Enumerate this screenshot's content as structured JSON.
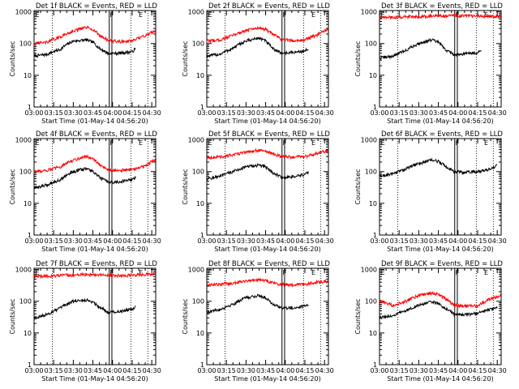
{
  "chart_data": [
    {
      "type": "line",
      "title": "Det 1f BLACK = Events, RED = LLD",
      "xlabel": "Start Time (01-May-14 04:56:20)",
      "ylabel": "Counts/sec",
      "x_ticks": [
        "03:00",
        "03:15",
        "03:30",
        "03:45",
        "04:00",
        "04:15",
        "04:30"
      ],
      "y_ticks": [
        "1",
        "10",
        "100",
        "1000"
      ],
      "yscale": "log",
      "ylim": [
        1,
        1100
      ],
      "xlim_minutes": [
        0,
        93
      ],
      "markers": [
        {
          "label": "E",
          "x": 1
        },
        {
          "label": "F",
          "x": 58
        },
        {
          "label": "E",
          "x": 80
        }
      ],
      "dotted_lines": [
        14,
        74,
        87
      ],
      "solid_lines": [
        57.5,
        59.5
      ],
      "series": [
        {
          "color": "#000000",
          "x": [
            0,
            10,
            20,
            30,
            40,
            45,
            50,
            57,
            65,
            75,
            78
          ],
          "values": [
            40,
            46,
            65,
            120,
            130,
            110,
            70,
            48,
            50,
            55,
            70
          ]
        },
        {
          "color": "#ff0000",
          "x": [
            0,
            10,
            20,
            30,
            40,
            45,
            50,
            57,
            65,
            75,
            85,
            90,
            93
          ],
          "values": [
            100,
            110,
            160,
            250,
            320,
            280,
            180,
            125,
            115,
            120,
            175,
            230,
            260
          ]
        }
      ]
    },
    {
      "type": "line",
      "title": "Det 2f BLACK = Events, RED = LLD",
      "xlabel": "Start Time (01-May-14 04:56:20)",
      "ylabel": "Counts/sec",
      "x_ticks": [
        "03:00",
        "03:15",
        "03:30",
        "03:45",
        "04:00",
        "04:15",
        "04:30"
      ],
      "y_ticks": [
        "1",
        "10",
        "100",
        "1000"
      ],
      "yscale": "log",
      "ylim": [
        1,
        1100
      ],
      "xlim_minutes": [
        0,
        93
      ],
      "markers": [
        {
          "label": "E",
          "x": 1
        },
        {
          "label": "F",
          "x": 58
        },
        {
          "label": "E",
          "x": 80
        }
      ],
      "dotted_lines": [
        14,
        74,
        87
      ],
      "solid_lines": [
        57.5,
        59.5
      ],
      "series": [
        {
          "color": "#000000",
          "x": [
            0,
            10,
            20,
            30,
            40,
            45,
            50,
            57,
            65,
            75,
            78
          ],
          "values": [
            40,
            46,
            70,
            120,
            150,
            120,
            70,
            50,
            52,
            58,
            72
          ]
        },
        {
          "color": "#ff0000",
          "x": [
            0,
            10,
            20,
            30,
            40,
            45,
            50,
            57,
            65,
            75,
            85,
            90,
            93
          ],
          "values": [
            120,
            130,
            180,
            260,
            320,
            280,
            200,
            135,
            125,
            130,
            190,
            250,
            270
          ]
        }
      ]
    },
    {
      "type": "line",
      "title": "Det 3f BLACK = Events, RED = LLD",
      "xlabel": "Start Time (01-May-14 04:56:20)",
      "ylabel": "Counts/sec",
      "x_ticks": [
        "03:00",
        "03:15",
        "03:30",
        "03:45",
        "04:00",
        "04:15",
        "04:30"
      ],
      "y_ticks": [
        "1",
        "10",
        "100",
        "1000"
      ],
      "yscale": "log",
      "ylim": [
        1,
        1100
      ],
      "xlim_minutes": [
        0,
        93
      ],
      "markers": [
        {
          "label": "E",
          "x": 1
        },
        {
          "label": "F",
          "x": 58
        },
        {
          "label": "E",
          "x": 80
        }
      ],
      "dotted_lines": [
        14,
        74,
        87
      ],
      "solid_lines": [
        57.5,
        59.5
      ],
      "series": [
        {
          "color": "#000000",
          "x": [
            0,
            10,
            20,
            30,
            40,
            45,
            50,
            57,
            65,
            75,
            78
          ],
          "values": [
            35,
            40,
            60,
            100,
            130,
            110,
            65,
            45,
            48,
            52,
            60
          ]
        },
        {
          "color": "#ff0000",
          "x": [
            0,
            10,
            20,
            30,
            40,
            50,
            57,
            65,
            75,
            85,
            93
          ],
          "values": [
            650,
            680,
            700,
            720,
            740,
            740,
            760,
            750,
            730,
            720,
            700
          ]
        }
      ]
    },
    {
      "type": "line",
      "title": "Det 4f BLACK = Events, RED = LLD",
      "xlabel": "Start Time (01-May-14 04:56:20)",
      "ylabel": "Counts/sec",
      "x_ticks": [
        "03:00",
        "03:15",
        "03:30",
        "03:45",
        "04:00",
        "04:15",
        "04:30"
      ],
      "y_ticks": [
        "1",
        "10",
        "100",
        "1000"
      ],
      "yscale": "log",
      "ylim": [
        1,
        1100
      ],
      "xlim_minutes": [
        0,
        93
      ],
      "markers": [
        {
          "label": "E",
          "x": 1
        },
        {
          "label": "F",
          "x": 58
        },
        {
          "label": "E",
          "x": 80
        }
      ],
      "dotted_lines": [
        14,
        74,
        87
      ],
      "solid_lines": [
        57.5,
        59.5
      ],
      "series": [
        {
          "color": "#000000",
          "x": [
            0,
            10,
            20,
            30,
            40,
            45,
            50,
            57,
            65,
            75,
            78
          ],
          "values": [
            30,
            38,
            55,
            100,
            125,
            100,
            65,
            45,
            48,
            55,
            70
          ]
        },
        {
          "color": "#ff0000",
          "x": [
            0,
            10,
            20,
            30,
            40,
            45,
            50,
            57,
            65,
            75,
            85,
            90,
            93
          ],
          "values": [
            100,
            110,
            140,
            230,
            300,
            250,
            160,
            115,
            110,
            115,
            150,
            210,
            230
          ]
        }
      ]
    },
    {
      "type": "line",
      "title": "Det 5f BLACK = Events, RED = LLD",
      "xlabel": "Start Time (01-May-14 04:56:20)",
      "ylabel": "Counts/sec",
      "x_ticks": [
        "03:00",
        "03:15",
        "03:30",
        "03:45",
        "04:00",
        "04:15",
        "04:30"
      ],
      "y_ticks": [
        "1",
        "10",
        "100",
        "1000"
      ],
      "yscale": "log",
      "ylim": [
        1,
        1100
      ],
      "xlim_minutes": [
        0,
        93
      ],
      "markers": [
        {
          "label": "E",
          "x": 1
        },
        {
          "label": "F",
          "x": 58
        },
        {
          "label": "E",
          "x": 80
        }
      ],
      "dotted_lines": [
        14,
        74,
        87
      ],
      "solid_lines": [
        57.5,
        59.5
      ],
      "series": [
        {
          "color": "#000000",
          "x": [
            0,
            10,
            20,
            30,
            40,
            45,
            50,
            57,
            65,
            75,
            78
          ],
          "values": [
            60,
            70,
            100,
            140,
            160,
            140,
            95,
            65,
            68,
            80,
            100
          ]
        },
        {
          "color": "#ff0000",
          "x": [
            0,
            10,
            20,
            30,
            40,
            45,
            50,
            57,
            65,
            75,
            85,
            93
          ],
          "values": [
            280,
            290,
            330,
            420,
            470,
            440,
            360,
            300,
            290,
            300,
            380,
            460
          ]
        }
      ]
    },
    {
      "type": "line",
      "title": "Det 6f BLACK = Events, RED = LLD",
      "xlabel": "Start Time (01-May-14 04:56:20)",
      "ylabel": "Counts/sec",
      "x_ticks": [
        "03:00",
        "03:15",
        "03:30",
        "03:45",
        "04:00",
        "04:15",
        "04:30"
      ],
      "y_ticks": [
        "1",
        "10",
        "100",
        "1000"
      ],
      "yscale": "log",
      "ylim": [
        1,
        1100
      ],
      "xlim_minutes": [
        0,
        93
      ],
      "markers": [
        {
          "label": "E",
          "x": 1
        },
        {
          "label": "F",
          "x": 58
        },
        {
          "label": "E",
          "x": 80
        }
      ],
      "dotted_lines": [
        14,
        74,
        87
      ],
      "solid_lines": [
        57.5,
        59.5
      ],
      "series": [
        {
          "color": "#000000",
          "x": [
            0,
            10,
            20,
            30,
            40,
            45,
            50,
            57,
            65,
            75,
            85,
            90
          ],
          "values": [
            70,
            85,
            120,
            180,
            230,
            210,
            150,
            100,
            95,
            100,
            120,
            160
          ]
        }
      ]
    },
    {
      "type": "line",
      "title": "Det 7f BLACK = Events, RED = LLD",
      "xlabel": "Start Time (01-May-14 04:56:20)",
      "ylabel": "Counts/sec",
      "x_ticks": [
        "03:00",
        "03:15",
        "03:30",
        "03:45",
        "04:00",
        "04:15",
        "04:30"
      ],
      "y_ticks": [
        "1",
        "10",
        "100",
        "1000"
      ],
      "yscale": "log",
      "ylim": [
        1,
        1100
      ],
      "xlim_minutes": [
        0,
        93
      ],
      "markers": [
        {
          "label": "E",
          "x": 1
        },
        {
          "label": "F",
          "x": 58
        },
        {
          "label": "E",
          "x": 80
        }
      ],
      "dotted_lines": [
        14,
        74,
        87
      ],
      "solid_lines": [
        57.5,
        59.5
      ],
      "series": [
        {
          "color": "#000000",
          "x": [
            0,
            10,
            20,
            30,
            40,
            45,
            50,
            57,
            65,
            75,
            78
          ],
          "values": [
            30,
            38,
            60,
            100,
            110,
            95,
            65,
            45,
            48,
            55,
            70
          ]
        },
        {
          "color": "#ff0000",
          "x": [
            0,
            10,
            20,
            30,
            40,
            50,
            57,
            65,
            75,
            85,
            93
          ],
          "values": [
            600,
            620,
            650,
            680,
            700,
            680,
            660,
            640,
            660,
            700,
            750
          ]
        }
      ]
    },
    {
      "type": "line",
      "title": "Det 8f BLACK = Events, RED = LLD",
      "xlabel": "Start Time (01-May-14 04:56:20)",
      "ylabel": "Counts/sec",
      "x_ticks": [
        "03:00",
        "03:15",
        "03:30",
        "03:45",
        "04:00",
        "04:15",
        "04:30"
      ],
      "y_ticks": [
        "1",
        "10",
        "100",
        "1000"
      ],
      "yscale": "log",
      "ylim": [
        1,
        1100
      ],
      "xlim_minutes": [
        0,
        93
      ],
      "markers": [
        {
          "label": "E",
          "x": 1
        },
        {
          "label": "F",
          "x": 58
        },
        {
          "label": "E",
          "x": 80
        }
      ],
      "dotted_lines": [
        14,
        74,
        87
      ],
      "solid_lines": [
        57.5,
        59.5
      ],
      "series": [
        {
          "color": "#000000",
          "x": [
            0,
            10,
            20,
            30,
            40,
            45,
            50,
            57,
            65,
            75,
            78
          ],
          "values": [
            45,
            55,
            80,
            130,
            150,
            130,
            85,
            60,
            62,
            70,
            85
          ]
        },
        {
          "color": "#ff0000",
          "x": [
            0,
            10,
            20,
            30,
            40,
            45,
            50,
            57,
            65,
            75,
            85,
            93
          ],
          "values": [
            330,
            340,
            380,
            440,
            480,
            450,
            390,
            340,
            330,
            350,
            400,
            430
          ]
        }
      ]
    },
    {
      "type": "line",
      "title": "Det 9f BLACK = Events, RED = LLD",
      "xlabel": "Start Time (01-May-14 04:56:20)",
      "ylabel": "Counts/sec",
      "x_ticks": [
        "03:00",
        "03:15",
        "03:30",
        "03:45",
        "04:00",
        "04:15",
        "04:30"
      ],
      "y_ticks": [
        "1",
        "10",
        "100",
        "1000"
      ],
      "yscale": "log",
      "ylim": [
        1,
        1100
      ],
      "xlim_minutes": [
        0,
        93
      ],
      "markers": [
        {
          "label": "E",
          "x": 1
        },
        {
          "label": "F",
          "x": 58
        },
        {
          "label": "E",
          "x": 80
        }
      ],
      "dotted_lines": [
        14,
        74,
        87
      ],
      "solid_lines": [
        57.5,
        59.5
      ],
      "series": [
        {
          "color": "#000000",
          "x": [
            0,
            10,
            20,
            30,
            40,
            45,
            50,
            57,
            65,
            75,
            85,
            90
          ],
          "values": [
            30,
            35,
            50,
            75,
            95,
            85,
            60,
            40,
            38,
            42,
            55,
            60
          ]
        },
        {
          "color": "#ff0000",
          "x": [
            0,
            10,
            20,
            30,
            40,
            45,
            50,
            57,
            65,
            75,
            85,
            93
          ],
          "values": [
            100,
            75,
            100,
            150,
            180,
            165,
            120,
            75,
            70,
            72,
            120,
            150
          ]
        }
      ]
    }
  ]
}
